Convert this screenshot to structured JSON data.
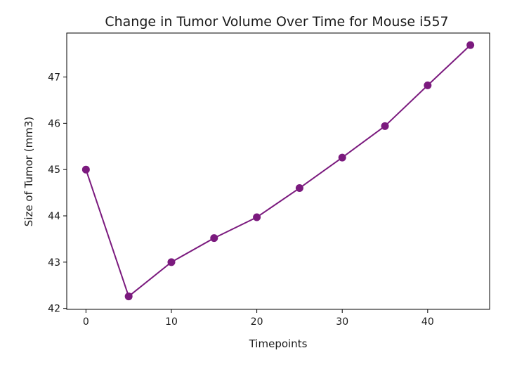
{
  "chart_data": {
    "type": "line",
    "title": "Change in Tumor Volume Over Time for Mouse i557",
    "xlabel": "Timepoints",
    "ylabel": "Size of Tumor (mm3)",
    "xlim": [
      -2.25,
      47.25
    ],
    "ylim": [
      41.98,
      47.95
    ],
    "xticks": [
      0,
      10,
      20,
      30,
      40
    ],
    "yticks": [
      42,
      43,
      44,
      45,
      46,
      47
    ],
    "grid": false,
    "color": "#7b1a7e",
    "marker": "circle",
    "series": [
      {
        "x": [
          0,
          5,
          10,
          15,
          20,
          25,
          30,
          35,
          40,
          45
        ],
        "y": [
          45.0,
          42.26,
          43.0,
          43.52,
          43.97,
          44.6,
          45.26,
          45.94,
          46.82,
          47.69
        ]
      }
    ]
  }
}
